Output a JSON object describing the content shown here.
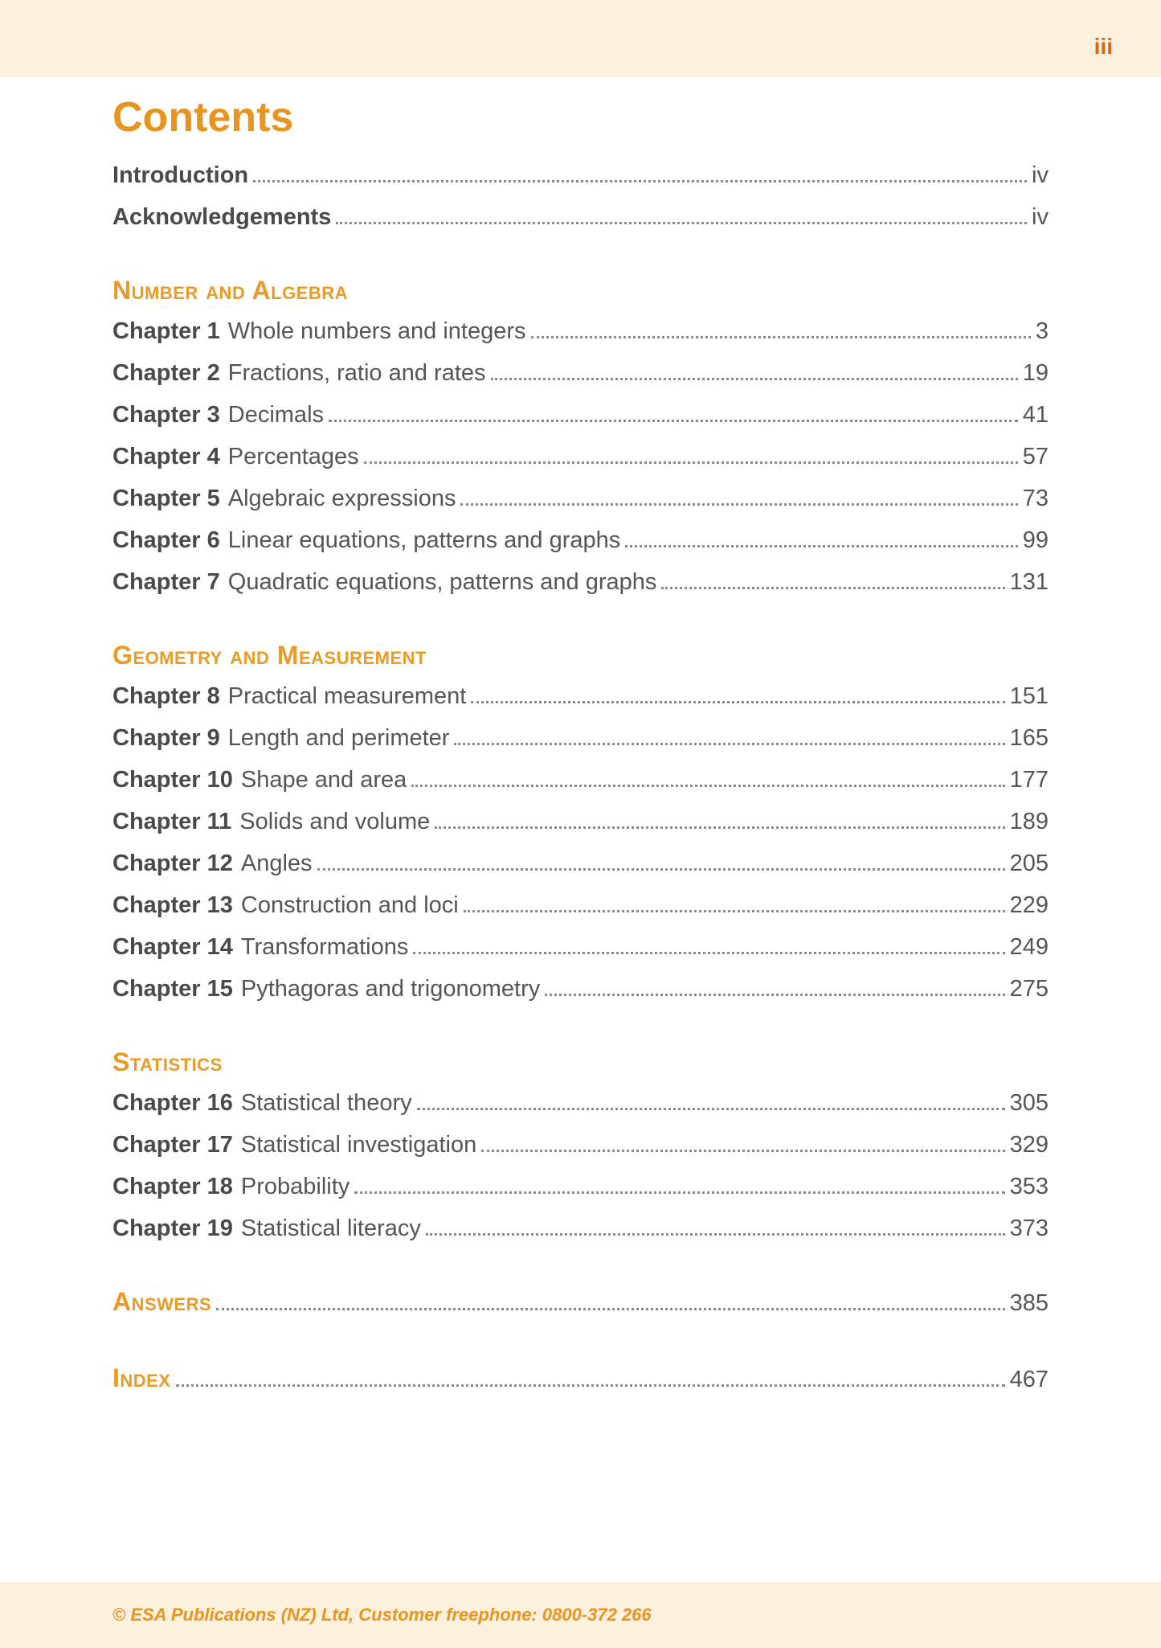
{
  "page_label": "iii",
  "title": "Contents",
  "colors": {
    "accent": "#e8941f",
    "accent_dark": "#d36a1b",
    "cream": "#fdf0dd",
    "text": "#555555",
    "bold_text": "#4a4a4a",
    "dot": "#8a8a8a",
    "background": "#ffffff"
  },
  "typography": {
    "title_fontsize": 52,
    "section_fontsize": 32,
    "line_fontsize": 29,
    "footer_fontsize": 22,
    "font_family": "Optima / humanist sans-serif"
  },
  "front_matter": [
    {
      "label": "Introduction",
      "page": "iv"
    },
    {
      "label": "Acknowledgements",
      "page": "iv"
    }
  ],
  "sections": [
    {
      "heading": "Number and Algebra",
      "chapters": [
        {
          "label": "Chapter 1",
          "title": "Whole numbers and integers",
          "page": "3"
        },
        {
          "label": "Chapter 2",
          "title": "Fractions, ratio and rates",
          "page": "19"
        },
        {
          "label": "Chapter 3",
          "title": "Decimals",
          "page": "41"
        },
        {
          "label": "Chapter 4",
          "title": "Percentages",
          "page": "57"
        },
        {
          "label": "Chapter 5",
          "title": "Algebraic expressions",
          "page": "73"
        },
        {
          "label": "Chapter 6",
          "title": "Linear equations, patterns and graphs",
          "page": "99"
        },
        {
          "label": "Chapter 7",
          "title": "Quadratic equations, patterns and graphs",
          "page": "131"
        }
      ]
    },
    {
      "heading": "Geometry and Measurement",
      "chapters": [
        {
          "label": "Chapter 8",
          "title": "Practical measurement",
          "page": "151"
        },
        {
          "label": "Chapter 9",
          "title": "Length and perimeter",
          "page": "165"
        },
        {
          "label": "Chapter 10",
          "title": "Shape and area",
          "page": "177"
        },
        {
          "label": "Chapter 11",
          "title": "Solids and volume",
          "page": "189"
        },
        {
          "label": "Chapter 12",
          "title": "Angles",
          "page": "205"
        },
        {
          "label": "Chapter 13",
          "title": "Construction and loci",
          "page": "229"
        },
        {
          "label": "Chapter 14",
          "title": "Transformations",
          "page": "249"
        },
        {
          "label": "Chapter 15",
          "title": "Pythagoras and trigonometry",
          "page": "275"
        }
      ]
    },
    {
      "heading": "Statistics",
      "chapters": [
        {
          "label": "Chapter 16",
          "title": "Statistical theory",
          "page": "305"
        },
        {
          "label": "Chapter 17",
          "title": "Statistical investigation",
          "page": "329"
        },
        {
          "label": "Chapter 18",
          "title": "Probability",
          "page": "353"
        },
        {
          "label": "Chapter 19",
          "title": "Statistical literacy",
          "page": "373"
        }
      ]
    }
  ],
  "back_matter": [
    {
      "heading": "Answers",
      "page": "385"
    },
    {
      "heading": "Index",
      "page": "467"
    }
  ],
  "footer": "© ESA Publications (NZ) Ltd, Customer freephone: 0800-372 266"
}
